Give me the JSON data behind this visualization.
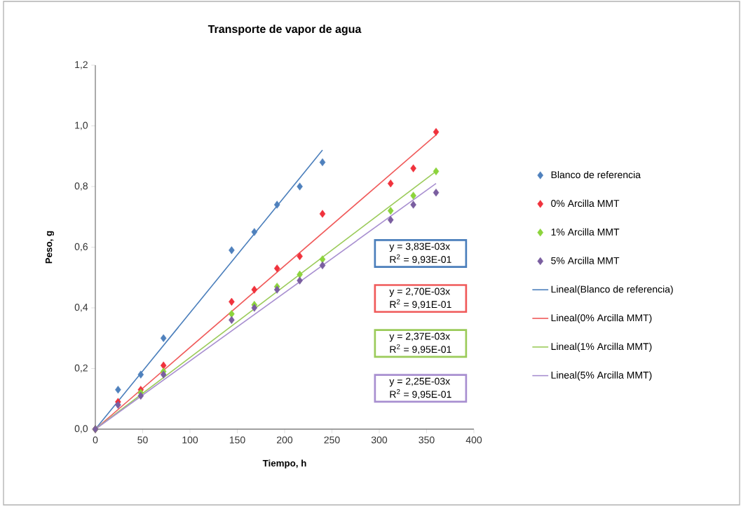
{
  "chart_data": {
    "type": "scatter",
    "title": "Transporte de vapor de agua",
    "xlabel": "Tiempo, h",
    "ylabel": "Peso, g",
    "xlim": [
      0,
      400
    ],
    "ylim": [
      0,
      1.2
    ],
    "xticks": [
      0,
      50,
      100,
      150,
      200,
      250,
      300,
      350,
      400
    ],
    "yticks": [
      {
        "value": 0,
        "label": "0,0"
      },
      {
        "value": 0.2,
        "label": "0,2"
      },
      {
        "value": 0.4,
        "label": "0,4"
      },
      {
        "value": 0.6,
        "label": "0,6"
      },
      {
        "value": 0.8,
        "label": "0,8"
      },
      {
        "value": 1.0,
        "label": "1,0"
      },
      {
        "value": 1.2,
        "label": "1,2"
      }
    ],
    "grid": false,
    "legend": "right",
    "marker": "diamond",
    "series": [
      {
        "name": "Blanco de referencia",
        "color": "#4f81bd",
        "x": [
          0,
          24,
          48,
          72,
          144,
          168,
          192,
          216,
          240
        ],
        "values": [
          0,
          0.13,
          0.18,
          0.3,
          0.59,
          0.65,
          0.74,
          0.8,
          0.88
        ]
      },
      {
        "name": "0% Arcilla MMT",
        "color": "#f0323c",
        "x": [
          0,
          24,
          48,
          72,
          144,
          168,
          192,
          216,
          240,
          312,
          336,
          360
        ],
        "values": [
          0,
          0.09,
          0.13,
          0.21,
          0.42,
          0.46,
          0.53,
          0.57,
          0.71,
          0.81,
          0.86,
          0.98
        ]
      },
      {
        "name": "1% Arcilla MMT",
        "color": "#8cd43c",
        "x": [
          0,
          24,
          48,
          72,
          144,
          168,
          192,
          216,
          240,
          312,
          336,
          360
        ],
        "values": [
          0,
          null,
          0.12,
          0.19,
          0.38,
          0.41,
          0.47,
          0.51,
          0.56,
          0.72,
          0.77,
          0.85
        ]
      },
      {
        "name": "5% Arcilla MMT",
        "color": "#7a5ea0",
        "x": [
          0,
          24,
          48,
          72,
          144,
          168,
          192,
          216,
          240,
          312,
          336,
          360
        ],
        "values": [
          0,
          0.08,
          0.11,
          0.18,
          0.36,
          0.4,
          0.46,
          0.49,
          0.54,
          0.69,
          0.74,
          0.78
        ]
      },
      {
        "name": "Lineal(Blanco de referencia)",
        "type": "line",
        "marker": "none",
        "color": "#4a7ebb",
        "x": [
          0,
          240
        ],
        "values": [
          0,
          0.92
        ]
      },
      {
        "name": "Lineal(0% Arcilla MMT)",
        "type": "line",
        "marker": "none",
        "color": "#f05a5a",
        "x": [
          0,
          360
        ],
        "values": [
          0,
          0.97
        ]
      },
      {
        "name": "Lineal(1% Arcilla MMT)",
        "type": "line",
        "marker": "none",
        "color": "#9bcb5a",
        "x": [
          0,
          360
        ],
        "values": [
          0,
          0.85
        ]
      },
      {
        "name": "Lineal(5% Arcilla MMT)",
        "type": "line",
        "marker": "none",
        "color": "#a88fd0",
        "x": [
          0,
          360
        ],
        "values": [
          0,
          0.81
        ]
      }
    ],
    "annotations": [
      "y = 3,83E-03x",
      "R$^{2}$ = 9,93E-01",
      "y = 2,70E-03x",
      "R$^{2}$ = 9,91E-01",
      "y = 2,37E-03x",
      "R$^{2}$ = 9,95E-01",
      "y = 2,25E-03x",
      "R$^{2}$ = 9,95E-01"
    ]
  }
}
